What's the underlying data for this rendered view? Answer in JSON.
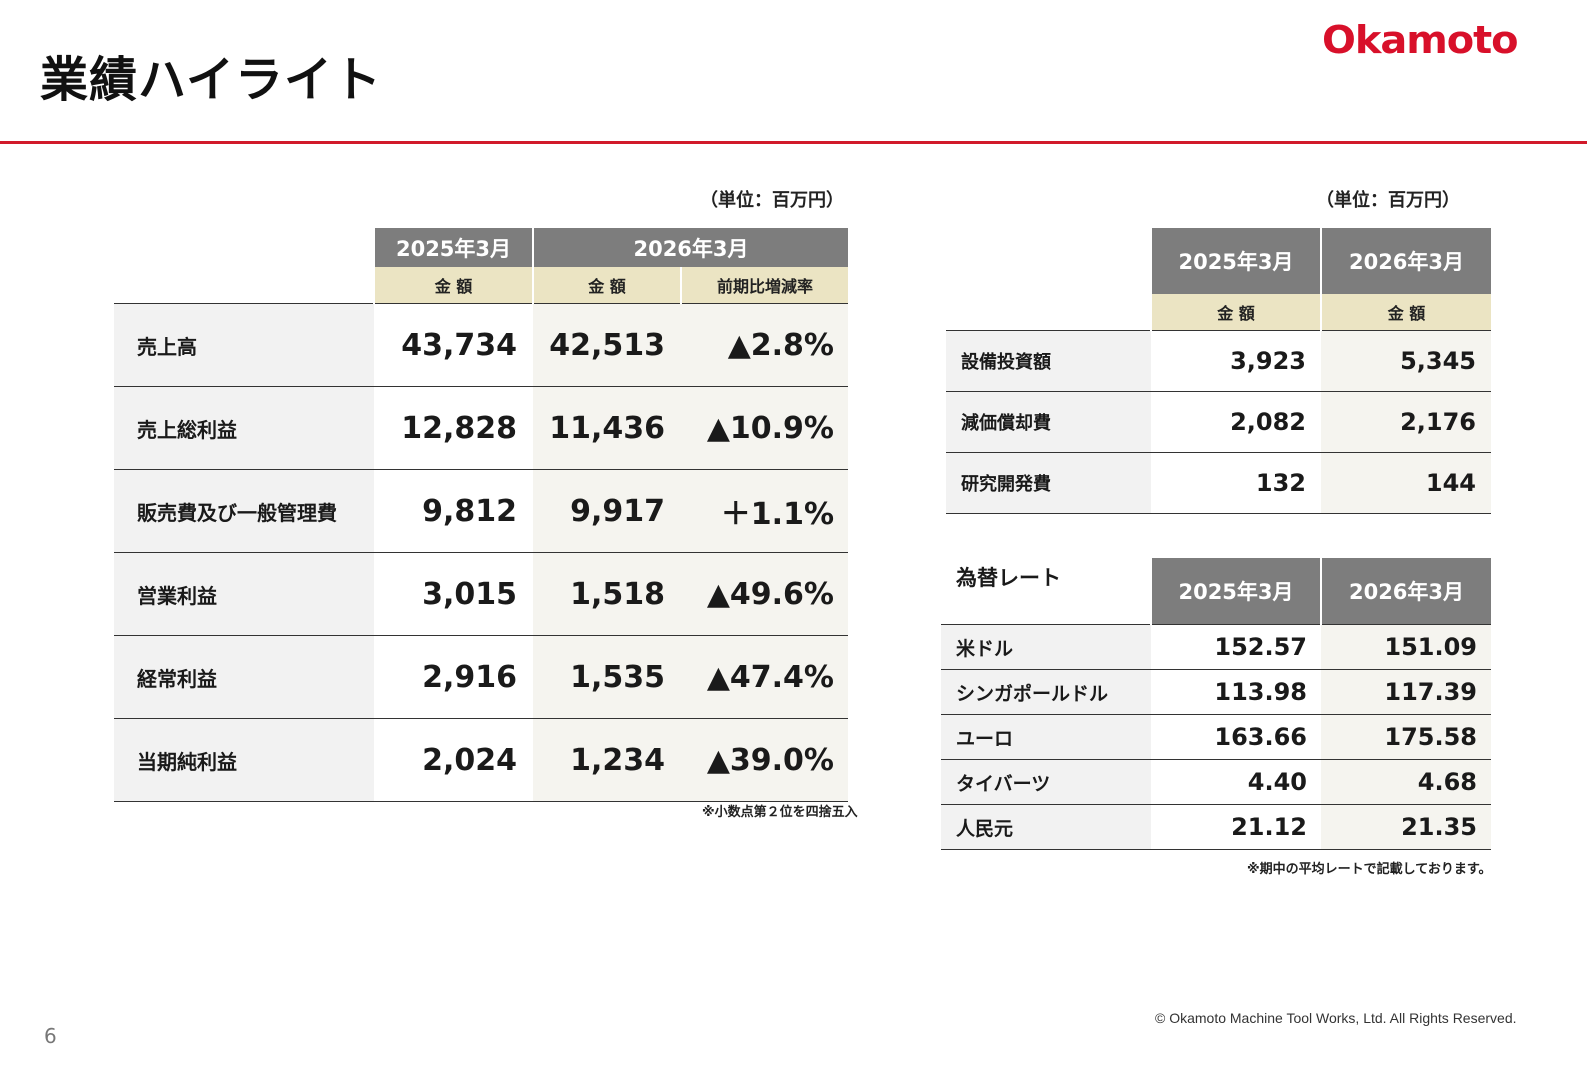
{
  "page": {
    "title": "業績ハイライト",
    "logo": "Okamoto",
    "page_number": "6",
    "copyright": "© Okamoto Machine Tool Works, Ltd. All Rights Reserved."
  },
  "performance": {
    "unit": "（単位：百万円）",
    "header": {
      "fy2025": "2025年3月",
      "fy2026": "2026年3月",
      "amount": "金 額",
      "change": "前期比増減率"
    },
    "rows": [
      {
        "label": "売上高",
        "fy2025": "43,734",
        "fy2026": "42,513",
        "change": "▲2.8%"
      },
      {
        "label": "売上総利益",
        "fy2025": "12,828",
        "fy2026": "11,436",
        "change": "▲10.9%"
      },
      {
        "label": "販売費及び一般管理費",
        "fy2025": "9,812",
        "fy2026": "9,917",
        "change": "＋1.1%"
      },
      {
        "label": "営業利益",
        "fy2025": "3,015",
        "fy2026": "1,518",
        "change": "▲49.6%"
      },
      {
        "label": "経常利益",
        "fy2025": "2,916",
        "fy2026": "1,535",
        "change": "▲47.4%"
      },
      {
        "label": "当期純利益",
        "fy2025": "2,024",
        "fy2026": "1,234",
        "change": "▲39.0%"
      }
    ],
    "note": "※小数点第２位を四捨五入"
  },
  "capex": {
    "unit": "（単位：百万円）",
    "header": {
      "fy2025": "2025年3月",
      "fy2026": "2026年3月",
      "amount": "金 額"
    },
    "rows": [
      {
        "label": "設備投資額",
        "fy2025": "3,923",
        "fy2026": "5,345"
      },
      {
        "label": "減価償却費",
        "fy2025": "2,082",
        "fy2026": "2,176"
      },
      {
        "label": "研究開発費",
        "fy2025": "132",
        "fy2026": "144"
      }
    ]
  },
  "fx": {
    "title": "為替レート",
    "header": {
      "fy2025": "2025年3月",
      "fy2026": "2026年3月"
    },
    "rows": [
      {
        "label": "米ドル",
        "fy2025": "152.57",
        "fy2026": "151.09"
      },
      {
        "label": "シンガポールドル",
        "fy2025": "113.98",
        "fy2026": "117.39"
      },
      {
        "label": "ユーロ",
        "fy2025": "163.66",
        "fy2026": "175.58"
      },
      {
        "label": "タイバーツ",
        "fy2025": "4.40",
        "fy2026": "4.68"
      },
      {
        "label": "人民元",
        "fy2025": "21.12",
        "fy2026": "21.35"
      }
    ],
    "note": "※期中の平均レートで記載しております。"
  }
}
